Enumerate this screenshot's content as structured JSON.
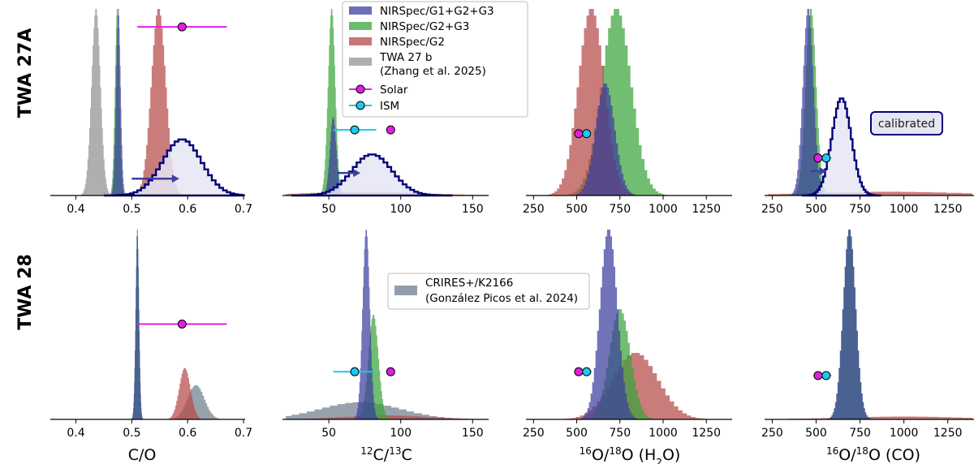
{
  "figure": {
    "row_titles": [
      "TWA 27A",
      "TWA 28"
    ],
    "x_labels": [
      "C/O",
      "12C/13C",
      "16O/18O (H2O)",
      "16O/18O (CO)"
    ],
    "annotation": "calibrated"
  },
  "legend_top": [
    {
      "key": "g123",
      "label": "NIRSpec/G1+G2+G3",
      "color": "#3b3f9e",
      "symbol": "patch"
    },
    {
      "key": "g23",
      "label": "NIRSpec/G2+G3",
      "color": "#3aa43a",
      "symbol": "patch"
    },
    {
      "key": "g2",
      "label": "NIRSpec/G2",
      "color": "#b54a48",
      "symbol": "patch"
    },
    {
      "key": "twa27b",
      "label": "TWA 27 b",
      "label2": "(Zhang et al. 2025)",
      "color": "#a6a6a6",
      "symbol": "patch"
    },
    {
      "key": "solar",
      "label": "Solar",
      "color": "#e020e0",
      "symbol": "marker"
    },
    {
      "key": "ism",
      "label": "ISM",
      "color": "#1ec8f0",
      "symbol": "marker"
    }
  ],
  "legend_bottom": [
    {
      "key": "crires",
      "label": "CRIRES+/K2166",
      "label2": "(González Picos et al. 2024)",
      "color": "#6e7e8c",
      "symbol": "patch"
    }
  ],
  "series_colors": {
    "g123": "#3b3f9e",
    "g23": "#3aa43a",
    "g2": "#b54a48",
    "twa27b": "#a6a6a6",
    "crires": "#6e7e8c",
    "calibrated": "#00007a",
    "solar": "#e020e0",
    "ism": "#1ec8f0"
  },
  "chart_data": [
    {
      "type": "histogram",
      "row": 0,
      "col": 0,
      "panel": "TWA 27A",
      "xlabel": "C/O",
      "xlim": [
        0.36,
        0.7
      ],
      "xticks": [
        0.4,
        0.5,
        0.6,
        0.7
      ],
      "tick_labels": [
        "0.4",
        "0.5",
        "0.6",
        "0.7"
      ],
      "series": [
        {
          "name": "TWA 27 b",
          "key": "twa27b",
          "mean": 0.436,
          "sigma": 0.008
        },
        {
          "name": "NIRSpec/G2",
          "key": "g2",
          "mean": 0.548,
          "sigma": 0.013
        },
        {
          "name": "NIRSpec/G2+G3",
          "key": "g23",
          "mean": 0.474,
          "sigma": 0.004
        },
        {
          "name": "NIRSpec/G1+G2+G3",
          "key": "g123",
          "mean": 0.476,
          "sigma": 0.004
        },
        {
          "name": "calibrated",
          "key": "calibrated",
          "mean": 0.59,
          "sigma": 0.035,
          "rel_height": 0.3
        }
      ],
      "solar": {
        "value": 0.59,
        "err_low": 0.08,
        "err_high": 0.08,
        "y_rel": 0.9
      },
      "arrow": {
        "from": 0.5,
        "to": 0.585,
        "y_rel": 0.09
      }
    },
    {
      "type": "histogram",
      "row": 0,
      "col": 1,
      "panel": "TWA 27A",
      "xlabel": "12C/13C",
      "xlim": [
        20,
        160
      ],
      "xticks": [
        50,
        100,
        150
      ],
      "tick_labels": [
        "50",
        "100",
        "150"
      ],
      "series": [
        {
          "name": "NIRSpec/G2",
          "key": "g2",
          "mean": 75,
          "sigma": 40,
          "rel_height": 0.02
        },
        {
          "name": "NIRSpec/G2+G3",
          "key": "g23",
          "mean": 52,
          "sigma": 2.5
        },
        {
          "name": "NIRSpec/G1+G2+G3",
          "key": "g123",
          "mean": 53,
          "sigma": 2.2,
          "rel_height": 0.42
        },
        {
          "name": "calibrated",
          "key": "calibrated",
          "mean": 80,
          "sigma": 14,
          "rel_height": 0.22
        }
      ],
      "solar": {
        "value": 93,
        "err_low": 0,
        "err_high": 0,
        "y_rel": 0.35
      },
      "ism": {
        "value": 68,
        "err_low": 15,
        "err_high": 15,
        "y_rel": 0.35
      },
      "arrow": {
        "from": 56,
        "to": 72,
        "y_rel": 0.12
      }
    },
    {
      "type": "histogram",
      "row": 0,
      "col": 2,
      "panel": "TWA 27A",
      "xlabel": "16O/18O (H2O)",
      "xlim": [
        225,
        1390
      ],
      "xticks": [
        250,
        500,
        750,
        1000,
        1250
      ],
      "tick_labels": [
        "250",
        "500",
        "750",
        "1000",
        "1250"
      ],
      "series": [
        {
          "name": "NIRSpec/G2+G3",
          "key": "g23",
          "mean": 730,
          "sigma": 85
        },
        {
          "name": "NIRSpec/G2",
          "key": "g2",
          "mean": 585,
          "sigma": 75
        },
        {
          "name": "NIRSpec/G1+G2+G3",
          "key": "g123",
          "mean": 665,
          "sigma": 55,
          "rel_height": 0.6
        }
      ],
      "solar": {
        "value": 511,
        "err_low": 0,
        "err_high": 0,
        "y_rel": 0.33
      },
      "ism": {
        "value": 557,
        "err_low": 30,
        "err_high": 30,
        "y_rel": 0.33
      }
    },
    {
      "type": "histogram",
      "row": 0,
      "col": 3,
      "panel": "TWA 27A",
      "xlabel": "16O/18O (CO)",
      "xlim": [
        225,
        1390
      ],
      "xticks": [
        250,
        500,
        750,
        1000,
        1250
      ],
      "tick_labels": [
        "250",
        "500",
        "750",
        "1000",
        "1250"
      ],
      "series": [
        {
          "name": "NIRSpec/G2",
          "key": "g2",
          "mean": 900,
          "sigma": 450,
          "rel_height": 0.02
        },
        {
          "name": "NIRSpec/G2+G3",
          "key": "g23",
          "mean": 470,
          "sigma": 30
        },
        {
          "name": "NIRSpec/G1+G2+G3",
          "key": "g123",
          "mean": 455,
          "sigma": 30
        },
        {
          "name": "calibrated",
          "key": "calibrated",
          "mean": 645,
          "sigma": 55,
          "rel_height": 0.52
        }
      ],
      "solar": {
        "value": 511,
        "err_low": 0,
        "err_high": 0,
        "y_rel": 0.2
      },
      "ism": {
        "value": 557,
        "err_low": 30,
        "err_high": 30,
        "y_rel": 0.2
      },
      "arrow": {
        "from": 470,
        "to": 560,
        "y_rel": 0.13
      }
    },
    {
      "type": "histogram",
      "row": 1,
      "col": 0,
      "panel": "TWA 28",
      "xlabel": "C/O",
      "xlim": [
        0.36,
        0.7
      ],
      "xticks": [
        0.4,
        0.5,
        0.6,
        0.7
      ],
      "tick_labels": [
        "0.4",
        "0.5",
        "0.6",
        "0.7"
      ],
      "series": [
        {
          "name": "CRIRES+/K2166",
          "key": "crires",
          "mean": 0.615,
          "sigma": 0.015,
          "rel_height": 0.18
        },
        {
          "name": "NIRSpec/G2",
          "key": "g2",
          "mean": 0.595,
          "sigma": 0.01,
          "rel_height": 0.27
        },
        {
          "name": "NIRSpec/G2+G3",
          "key": "g23",
          "mean": 0.51,
          "sigma": 0.003
        },
        {
          "name": "NIRSpec/G1+G2+G3",
          "key": "g123",
          "mean": 0.51,
          "sigma": 0.003
        }
      ],
      "solar": {
        "value": 0.59,
        "err_low": 0.08,
        "err_high": 0.08,
        "y_rel": 0.5
      }
    },
    {
      "type": "histogram",
      "row": 1,
      "col": 1,
      "panel": "TWA 28",
      "xlabel": "12C/13C",
      "xlim": [
        20,
        160
      ],
      "xticks": [
        50,
        100,
        150
      ],
      "tick_labels": [
        "50",
        "100",
        "150"
      ],
      "series": [
        {
          "name": "CRIRES+/K2166",
          "key": "crires",
          "mean": 72,
          "sigma": 28,
          "rel_height": 0.09
        },
        {
          "name": "NIRSpec/G2",
          "key": "g2",
          "mean": 90,
          "sigma": 30,
          "rel_height": 0.02
        },
        {
          "name": "NIRSpec/G2+G3",
          "key": "g23",
          "mean": 81,
          "sigma": 3.5,
          "rel_height": 0.55
        },
        {
          "name": "NIRSpec/G1+G2+G3",
          "key": "g123",
          "mean": 76,
          "sigma": 2.5
        }
      ],
      "solar": {
        "value": 93,
        "err_low": 0,
        "err_high": 0,
        "y_rel": 0.25
      },
      "ism": {
        "value": 68,
        "err_low": 15,
        "err_high": 15,
        "y_rel": 0.25
      }
    },
    {
      "type": "histogram",
      "row": 1,
      "col": 2,
      "panel": "TWA 28",
      "xlabel": "16O/18O (H2O)",
      "xlim": [
        225,
        1390
      ],
      "xticks": [
        250,
        500,
        750,
        1000,
        1250
      ],
      "tick_labels": [
        "250",
        "500",
        "750",
        "1000",
        "1250"
      ],
      "series": [
        {
          "name": "NIRSpec/G2",
          "key": "g2",
          "mean": 840,
          "sigma": 130,
          "rel_height": 0.35
        },
        {
          "name": "NIRSpec/G2+G3",
          "key": "g23",
          "mean": 750,
          "sigma": 60,
          "rel_height": 0.58
        },
        {
          "name": "NIRSpec/G1+G2+G3",
          "key": "g123",
          "mean": 685,
          "sigma": 50
        }
      ],
      "solar": {
        "value": 511,
        "err_low": 0,
        "err_high": 0,
        "y_rel": 0.25
      },
      "ism": {
        "value": 557,
        "err_low": 30,
        "err_high": 30,
        "y_rel": 0.25
      }
    },
    {
      "type": "histogram",
      "row": 1,
      "col": 3,
      "panel": "TWA 28",
      "xlabel": "16O/18O (CO)",
      "xlim": [
        225,
        1390
      ],
      "xticks": [
        250,
        500,
        750,
        1000,
        1250
      ],
      "tick_labels": [
        "250",
        "500",
        "750",
        "1000",
        "1250"
      ],
      "series": [
        {
          "name": "NIRSpec/G2",
          "key": "g2",
          "mean": 1000,
          "sigma": 350,
          "rel_height": 0.015
        },
        {
          "name": "NIRSpec/G2+G3",
          "key": "g23",
          "mean": 690,
          "sigma": 35
        },
        {
          "name": "NIRSpec/G1+G2+G3",
          "key": "g123",
          "mean": 690,
          "sigma": 36
        }
      ],
      "solar": {
        "value": 511,
        "err_low": 0,
        "err_high": 0,
        "y_rel": 0.23
      },
      "ism": {
        "value": 557,
        "err_low": 30,
        "err_high": 30,
        "y_rel": 0.23
      }
    }
  ]
}
